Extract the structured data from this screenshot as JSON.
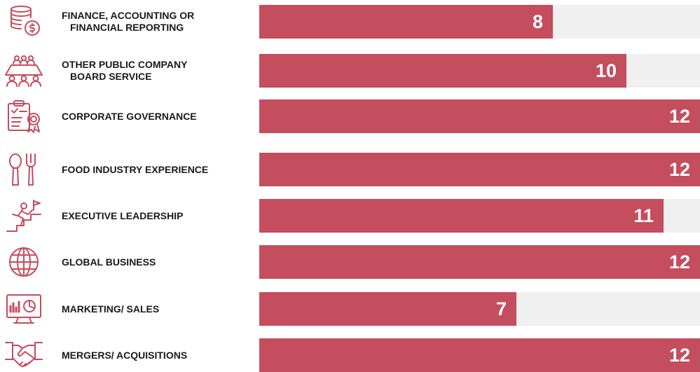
{
  "colors": {
    "bar": "#c44d5e",
    "track": "#f0f0f0",
    "icon": "#c44d5e",
    "text": "#1a1a1a"
  },
  "chart_data": {
    "type": "bar",
    "orientation": "horizontal",
    "xlim": [
      0,
      12
    ],
    "categories": [
      [
        "FINANCE, ACCOUNTING OR",
        "FINANCIAL REPORTING"
      ],
      [
        "OTHER PUBLIC COMPANY",
        "BOARD SERVICE"
      ],
      [
        "CORPORATE GOVERNANCE"
      ],
      [
        "FOOD INDUSTRY EXPERIENCE"
      ],
      [
        "EXECUTIVE LEADERSHIP"
      ],
      [
        "GLOBAL BUSINESS"
      ],
      [
        "MARKETING/ SALES"
      ],
      [
        "MERGERS/ ACQUISITIONS"
      ]
    ],
    "icons": [
      "coins-dollar-icon",
      "board-meeting-icon",
      "certificate-checklist-icon",
      "spoon-fork-icon",
      "climber-flag-icon",
      "globe-icon",
      "monitor-chart-icon",
      "handshake-icon"
    ],
    "values": [
      8,
      10,
      12,
      12,
      11,
      12,
      7,
      12
    ]
  }
}
